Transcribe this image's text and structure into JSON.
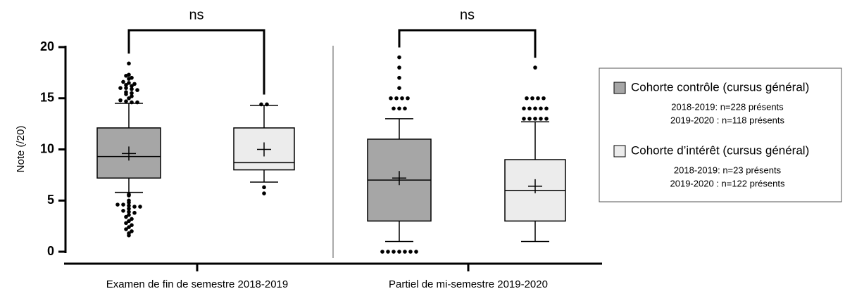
{
  "chart_data": {
    "type": "box",
    "ylabel": "Note (/20)",
    "categories": [
      "Examen de fin de semestre 2018-2019",
      "Partiel de mi-semestre 2019-2020"
    ],
    "ylim": [
      0,
      20
    ],
    "yticks": [
      0,
      5,
      10,
      15,
      20
    ],
    "annotations": [
      "ns",
      "ns"
    ],
    "legend": "right",
    "series": [
      {
        "name": "Cohorte contrôle (cursus général)",
        "color": "#a6a6a6",
        "notes": [
          "2018-2019: n=228 présents",
          "2019-2020 : n=118 présents"
        ],
        "boxes": [
          {
            "whisker_low": 5.8,
            "q1": 7.2,
            "median": 9.3,
            "q3": 12.1,
            "whisker_high": 14.5,
            "mean": 9.6,
            "outliers": [
              18.4,
              17.3,
              17.2,
              17.0,
              16.9,
              16.6,
              16.5,
              16.4,
              16.3,
              16.2,
              16.0,
              16.0,
              15.9,
              15.8,
              15.6,
              15.5,
              15.4,
              15.2,
              15.0,
              14.8,
              14.7,
              14.6,
              14.6,
              5.6,
              5.5,
              5.0,
              4.8,
              4.6,
              4.6,
              4.5,
              4.4,
              4.4,
              4.2,
              4.0,
              3.9,
              3.8,
              3.6,
              3.4,
              3.2,
              3.0,
              2.8,
              2.6,
              2.4,
              2.2,
              2.0,
              1.8,
              1.6
            ]
          },
          {
            "whisker_low": 1,
            "q1": 3,
            "median": 7,
            "q3": 11,
            "whisker_high": 13,
            "mean": 7.2,
            "outliers": [
              19,
              18,
              17,
              16,
              15,
              15,
              15,
              15,
              14,
              14,
              14,
              0,
              0,
              0,
              0,
              0,
              0,
              0
            ]
          }
        ]
      },
      {
        "name": "Cohorte d’intérêt (cursus général)",
        "color": "#ececec",
        "notes": [
          "2018-2019: n=23 présents",
          "2019-2020 : n=122 présents"
        ],
        "boxes": [
          {
            "whisker_low": 6.8,
            "q1": 8,
            "median": 8.7,
            "q3": 12.1,
            "whisker_high": 14.3,
            "mean": 10,
            "outliers": [
              14.4,
              14.4,
              6.3,
              5.7
            ]
          },
          {
            "whisker_low": 1,
            "q1": 3,
            "median": 6,
            "q3": 9,
            "whisker_high": 12.7,
            "mean": 6.4,
            "outliers": [
              18,
              15,
              15,
              15,
              15,
              14,
              14,
              14,
              14,
              14,
              13,
              13,
              13,
              13,
              13
            ]
          }
        ]
      }
    ]
  }
}
